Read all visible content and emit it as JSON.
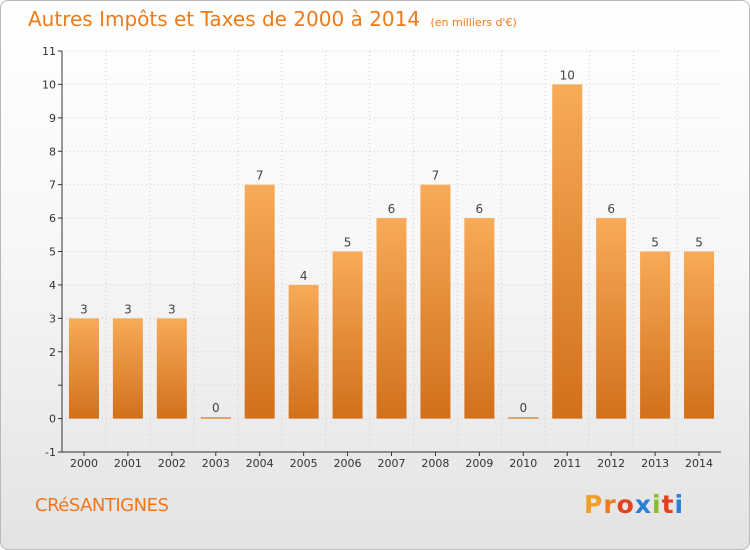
{
  "header": {
    "title": "Autres Impôts et Taxes de 2000 à 2014",
    "unit": "(en milliers d'€)"
  },
  "footer": {
    "commune": "CRéSANTIGNES",
    "brand": "Proxiti"
  },
  "colors": {
    "accent": "#ef7a18",
    "bar_light": "#f7ab58",
    "bar_dark": "#d2701b",
    "axis": "#333333",
    "grid": "#d0d0d0"
  },
  "brand_letter_colors": [
    "#f0a028",
    "#ee7a1c",
    "#e2421e",
    "#2a7fd4",
    "#8bbd2a",
    "#e2421e",
    "#2a7fd4"
  ],
  "chart_data": {
    "type": "bar",
    "title": "Autres Impôts et Taxes de 2000 à 2014",
    "subtitle": "(en milliers d'€)",
    "xlabel": "",
    "ylabel": "",
    "categories": [
      "2000",
      "2001",
      "2002",
      "2003",
      "2004",
      "2005",
      "2006",
      "2007",
      "2008",
      "2009",
      "2010",
      "2011",
      "2012",
      "2013",
      "2014"
    ],
    "values": [
      3,
      3,
      3,
      0,
      7,
      4,
      5,
      6,
      7,
      6,
      0,
      10,
      6,
      5,
      5
    ],
    "value_labels": [
      "3",
      "3",
      "3",
      "0",
      "7",
      "4",
      "5",
      "6",
      "7",
      "6",
      "0",
      "10",
      "6",
      "5",
      "5"
    ],
    "ylim": [
      -1,
      11
    ],
    "yticks": [
      -1,
      0,
      1,
      2,
      3,
      4,
      5,
      6,
      7,
      8,
      9,
      10,
      11
    ],
    "ytick_labels": [
      "-1",
      "0",
      "",
      "2",
      "3",
      "4",
      "5",
      "6",
      "7",
      "8",
      "9",
      "10",
      "11"
    ],
    "grid": true,
    "legend": "none"
  }
}
